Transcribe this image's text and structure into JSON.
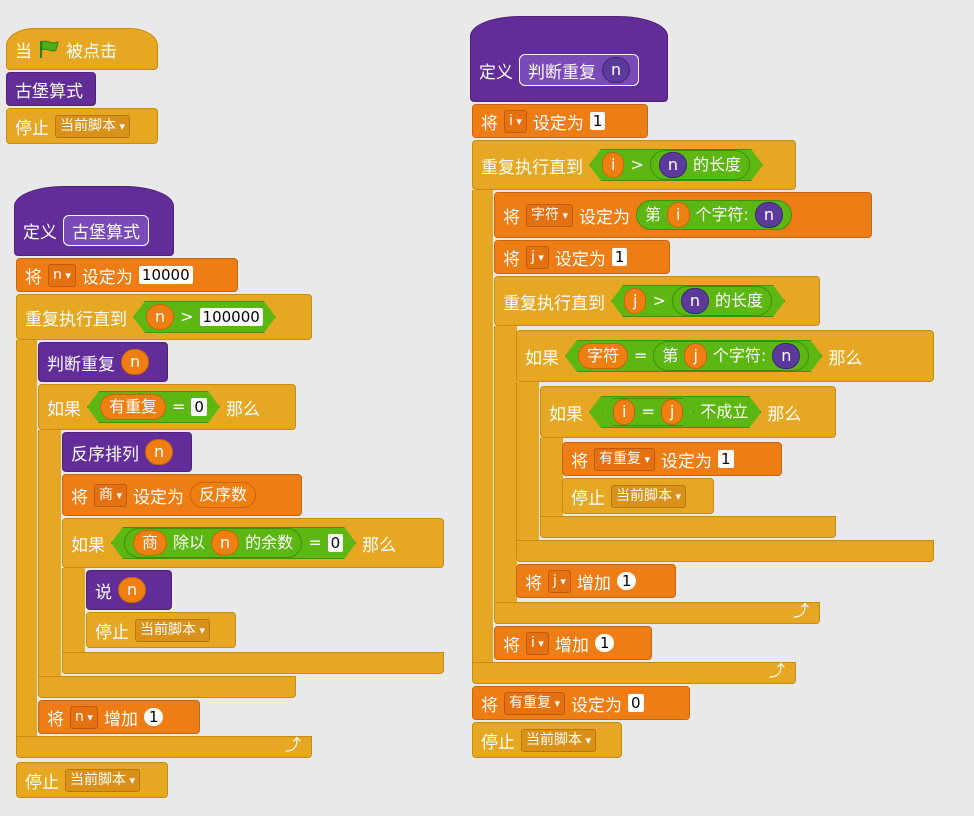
{
  "s1": {
    "when": "当",
    "clicked": "被点击",
    "call": "古堡算式",
    "stop": "停止",
    "stop_opt": "当前脚本"
  },
  "s2": {
    "define": "定义",
    "name": "古堡算式",
    "set": "将",
    "set_var": "n",
    "set_to": "设定为",
    "set_val": "10000",
    "repeat": "重复执行直到",
    "rvar": "n",
    "gt": ">",
    "rval": "100000",
    "call_judge": "判断重复",
    "call_arg": "n",
    "if": "如果",
    "has": "有重复",
    "eq": "=",
    "zero": "0",
    "then": "那么",
    "reverse": "反序排列",
    "rev_arg": "n",
    "set2_var": "商",
    "set2_to": "设定为",
    "set2_val": "反序数",
    "if2": "如果",
    "q": "商",
    "divmod": "除以",
    "dn": "n",
    "rem": "的余数",
    "eq2": "=",
    "zero2": "0",
    "then2": "那么",
    "say": "说",
    "say_arg": "n",
    "stop": "停止",
    "stop_opt": "当前脚本",
    "inc": "将",
    "inc_var": "n",
    "inc_word": "增加",
    "inc_val": "1",
    "stop2": "停止",
    "stop2_opt": "当前脚本"
  },
  "s3": {
    "define": "定义",
    "name": "判断重复",
    "param": "n",
    "set": "将",
    "set_var": "i",
    "set_to": "设定为",
    "set_val": "1",
    "repeat": "重复执行直到",
    "i": "i",
    "gt": ">",
    "n": "n",
    "len": "的长度",
    "set2": "将",
    "set2_var": "字符",
    "set2_to": "设定为",
    "nth": "第",
    "nth_i": "i",
    "char": "个字符:",
    "char_n": "n",
    "set3": "将",
    "set3_var": "j",
    "set3_to": "设定为",
    "set3_val": "1",
    "repeat2": "重复执行直到",
    "j": "j",
    "gt2": ">",
    "n2": "n",
    "len2": "的长度",
    "if": "如果",
    "chr": "字符",
    "eq": "=",
    "nth2": "第",
    "nth_j": "j",
    "char2": "个字符:",
    "char_n2": "n",
    "then": "那么",
    "if2": "如果",
    "ci": "i",
    "eq2": "=",
    "cj": "j",
    "not": "不成立",
    "then2": "那么",
    "set4": "将",
    "set4_var": "有重复",
    "set4_to": "设定为",
    "set4_val": "1",
    "stop": "停止",
    "stop_opt": "当前脚本",
    "incj": "将",
    "incj_var": "j",
    "incj_word": "增加",
    "incj_val": "1",
    "inci": "将",
    "inci_var": "i",
    "inci_word": "增加",
    "inci_val": "1",
    "set5": "将",
    "set5_var": "有重复",
    "set5_to": "设定为",
    "set5_val": "0",
    "stop2": "停止",
    "stop2_opt": "当前脚本"
  },
  "colors": {
    "control": "#e6a822",
    "data": "#ee7d16",
    "more": "#632d99",
    "operator": "#5cb712",
    "background": "#e9e9e9"
  }
}
